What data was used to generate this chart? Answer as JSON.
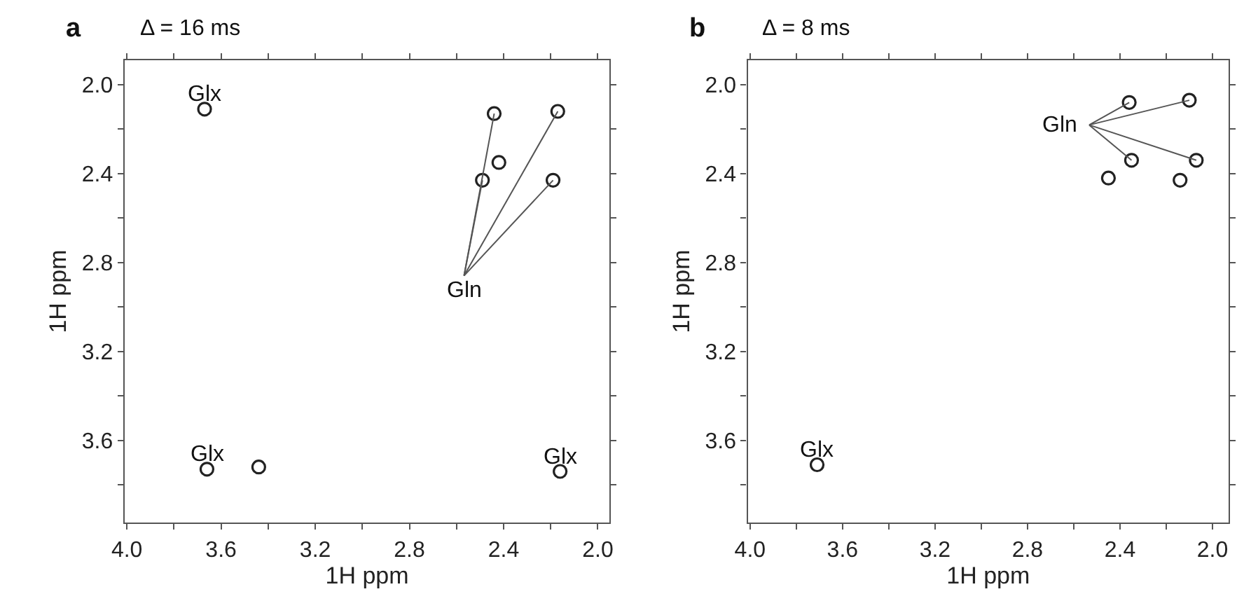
{
  "chart_data": [
    {
      "type": "scatter",
      "title": "Δ = 16 ms",
      "xlabel": "1H ppm",
      "ylabel": "1H ppm",
      "marker": "circle",
      "annotations": [
        "a",
        {
          "text": "Glx",
          "x": 3.67,
          "y": 2.11
        },
        {
          "text": "Glx",
          "x": 3.66,
          "y": 3.73
        },
        {
          "text": "Glx",
          "x": 2.16,
          "y": 3.74
        }
      ],
      "series": [
        {
          "name": "Gln",
          "color": "#222222",
          "x": [
            2.44,
            2.17,
            2.49,
            2.19
          ],
          "values": [
            2.13,
            2.12,
            2.43,
            2.43
          ]
        },
        {
          "color": "#222222",
          "x": [
            3.67,
            2.42,
            3.66,
            3.44,
            2.16
          ],
          "values": [
            2.11,
            2.35,
            3.73,
            3.72,
            3.74
          ]
        }
      ],
      "xlim": [
        4.01,
        1.95
      ],
      "ylim": [
        3.97,
        1.89
      ],
      "xticks": [
        {
          "value": 4,
          "label": "4.0"
        },
        {
          "value": 3.8,
          "label": null
        },
        {
          "value": 3.6,
          "label": "3.6"
        },
        {
          "value": 3.4,
          "label": null
        },
        {
          "value": 3.2,
          "label": "3.2"
        },
        {
          "value": 3.0,
          "label": null
        },
        {
          "value": 2.8,
          "label": "2.8"
        },
        {
          "value": 2.6,
          "label": null
        },
        {
          "value": 2.4,
          "label": "2.4"
        },
        {
          "value": 2.2,
          "label": null
        },
        {
          "value": 2,
          "label": "2.0"
        }
      ],
      "yticks": [
        {
          "value": 2,
          "label": "2.0"
        },
        {
          "value": 2.2,
          "label": null
        },
        {
          "value": 2.4,
          "label": "2.4"
        },
        {
          "value": 2.6,
          "label": null
        },
        {
          "value": 2.8,
          "label": "2.8"
        },
        {
          "value": 3.0,
          "label": null
        },
        {
          "value": 3.2,
          "label": "3.2"
        },
        {
          "value": 3.4,
          "label": null
        },
        {
          "value": 3.6,
          "label": "3.6"
        },
        {
          "value": 3.8,
          "label": null
        }
      ]
    },
    {
      "type": "scatter",
      "title": "Δ = 8 ms",
      "xlabel": "1H ppm",
      "ylabel": "1H ppm",
      "marker": "circle",
      "annotations": [
        "b",
        {
          "text": "Glx",
          "x": 3.71,
          "y": 3.71
        }
      ],
      "series": [
        {
          "name": "Gln",
          "color": "#222222",
          "x": [
            2.36,
            2.1,
            2.35,
            2.07
          ],
          "values": [
            2.08,
            2.07,
            2.34,
            2.34
          ]
        },
        {
          "color": "#222222",
          "x": [
            2.45,
            2.14,
            3.71
          ],
          "values": [
            2.42,
            2.43,
            3.71
          ]
        }
      ],
      "xlim": [
        4.01,
        1.93
      ],
      "ylim": [
        3.97,
        1.89
      ],
      "xticks": [
        {
          "value": 4,
          "label": "4.0"
        },
        {
          "value": 3.8,
          "label": null
        },
        {
          "value": 3.6,
          "label": "3.6"
        },
        {
          "value": 3.4,
          "label": null
        },
        {
          "value": 3.2,
          "label": "3.2"
        },
        {
          "value": 3.0,
          "label": null
        },
        {
          "value": 2.8,
          "label": "2.8"
        },
        {
          "value": 2.6,
          "label": null
        },
        {
          "value": 2.4,
          "label": "2.4"
        },
        {
          "value": 2.2,
          "label": null
        },
        {
          "value": 2,
          "label": "2.0"
        }
      ],
      "yticks": [
        {
          "value": 2,
          "label": "2.0"
        },
        {
          "value": 2.2,
          "label": null
        },
        {
          "value": 2.4,
          "label": "2.4"
        },
        {
          "value": 2.6,
          "label": null
        },
        {
          "value": 2.8,
          "label": "2.8"
        },
        {
          "value": 3.0,
          "label": null
        },
        {
          "value": 3.2,
          "label": "3.2"
        },
        {
          "value": 3.4,
          "label": null
        },
        {
          "value": 3.6,
          "label": "3.6"
        },
        {
          "value": 3.8,
          "label": null
        }
      ]
    }
  ]
}
